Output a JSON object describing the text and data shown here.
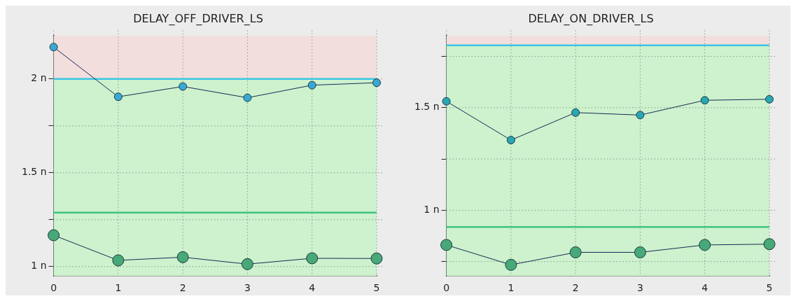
{
  "chart_data": [
    {
      "type": "line",
      "title": "DELAY_OFF_DRIVER_LS",
      "x": [
        0,
        1,
        2,
        3,
        4,
        5
      ],
      "series": [
        {
          "color": "#3aa8d2",
          "values": [
            2.17,
            1.905,
            1.96,
            1.9,
            1.967,
            1.98
          ]
        },
        {
          "color": "#48a878",
          "values": [
            1.167,
            1.033,
            1.05,
            1.013,
            1.044,
            1.043
          ]
        }
      ],
      "xlim": [
        0,
        5
      ],
      "xticks": [
        0,
        1,
        2,
        3,
        4,
        5
      ],
      "ylim": [
        0.95,
        2.23
      ],
      "yticks": [
        {
          "value": 1,
          "label": "1 n"
        },
        {
          "value": 1.25,
          "label": null
        },
        {
          "value": 1.5,
          "label": "1.5 n"
        },
        {
          "value": 1.75,
          "label": null
        },
        {
          "value": 2,
          "label": "2 n"
        }
      ],
      "ref_lines": [
        {
          "axis": "y",
          "value": 2,
          "color": "#3cc6e2"
        },
        {
          "axis": "y",
          "value": 1.288,
          "color": "#3ec47e"
        }
      ],
      "bands": [
        {
          "axis": "y",
          "from": 2,
          "to": 2.23,
          "color": "#f3dede"
        },
        {
          "axis": "y",
          "from": 0.95,
          "to": 2,
          "color": "#cdf2cd"
        }
      ],
      "grid": true,
      "marker": "circle",
      "line_style": "solid",
      "legend": false
    },
    {
      "type": "line",
      "title": "DELAY_ON_DRIVER_LS",
      "x": [
        0,
        1,
        2,
        3,
        4,
        5
      ],
      "series": [
        {
          "color": "#2aa6b4",
          "values": [
            1.531,
            1.342,
            1.476,
            1.464,
            1.536,
            1.541
          ]
        },
        {
          "color": "#48a878",
          "values": [
            0.831,
            0.734,
            0.795,
            0.795,
            0.831,
            0.835
          ]
        }
      ],
      "xlim": [
        0,
        5
      ],
      "xticks": [
        0,
        1,
        2,
        3,
        4,
        5
      ],
      "ylim": [
        0.68,
        1.85
      ],
      "yticks": [
        {
          "value": 0.75,
          "label": null
        },
        {
          "value": 1,
          "label": "1 n"
        },
        {
          "value": 1.25,
          "label": null
        },
        {
          "value": 1.5,
          "label": "1.5 n"
        },
        {
          "value": 1.75,
          "label": null
        }
      ],
      "ref_lines": [
        {
          "axis": "y",
          "value": 1.804,
          "color": "#3cc6e2"
        },
        {
          "axis": "y",
          "value": 0.919,
          "color": "#3ec47e"
        }
      ],
      "bands": [
        {
          "axis": "y",
          "from": 1.804,
          "to": 1.85,
          "color": "#f3dede"
        },
        {
          "axis": "y",
          "from": 0.68,
          "to": 1.804,
          "color": "#cdf2cd"
        }
      ],
      "grid": true,
      "marker": "circle",
      "line_style": "solid",
      "legend": false
    }
  ]
}
